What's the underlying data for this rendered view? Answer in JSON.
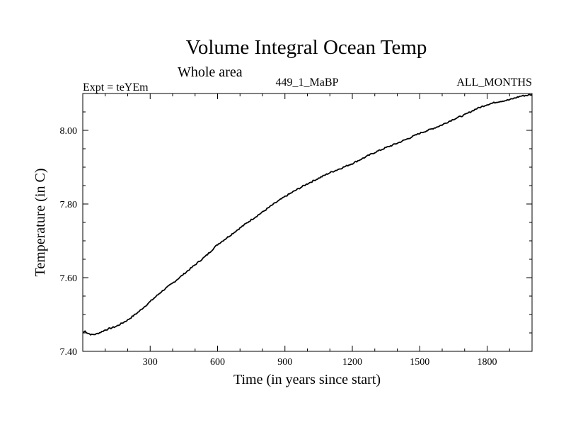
{
  "chart_data": {
    "type": "line",
    "title": "Volume Integral Ocean Temp",
    "subtitle": "Whole area",
    "annotations": {
      "left": "Expt = teYEm",
      "center": "449_1_MaBP",
      "right": "ALL_MONTHS"
    },
    "xlabel": "Time (in years since start)",
    "ylabel": "Temperature (in C)",
    "xlim": [
      0,
      2000
    ],
    "ylim": [
      7.4,
      8.1
    ],
    "xticks": [
      300,
      600,
      900,
      1200,
      1500,
      1800
    ],
    "xtick_labels": [
      "300",
      "600",
      "900",
      "1200",
      "1500",
      "1800"
    ],
    "yticks": [
      7.4,
      7.6,
      7.8,
      8.0
    ],
    "ytick_labels": [
      "7.40",
      "7.60",
      "7.80",
      "8.00"
    ],
    "grid": false,
    "series": [
      {
        "name": "Volume Integral Ocean Temp",
        "x": [
          0,
          10,
          20,
          40,
          60,
          80,
          100,
          150,
          200,
          250,
          300,
          350,
          400,
          450,
          500,
          550,
          600,
          650,
          700,
          750,
          800,
          850,
          900,
          950,
          1000,
          1050,
          1100,
          1150,
          1200,
          1250,
          1300,
          1350,
          1400,
          1450,
          1500,
          1550,
          1600,
          1650,
          1700,
          1750,
          1800,
          1850,
          1900,
          1950,
          2000
        ],
        "values": [
          7.45,
          7.455,
          7.45,
          7.445,
          7.447,
          7.452,
          7.458,
          7.468,
          7.485,
          7.508,
          7.535,
          7.562,
          7.585,
          7.61,
          7.635,
          7.66,
          7.69,
          7.712,
          7.735,
          7.757,
          7.778,
          7.8,
          7.82,
          7.838,
          7.855,
          7.87,
          7.885,
          7.897,
          7.91,
          7.925,
          7.94,
          7.953,
          7.965,
          7.978,
          7.992,
          8.003,
          8.015,
          8.03,
          8.042,
          8.058,
          8.07,
          8.078,
          8.083,
          8.093,
          8.097
        ]
      }
    ]
  }
}
